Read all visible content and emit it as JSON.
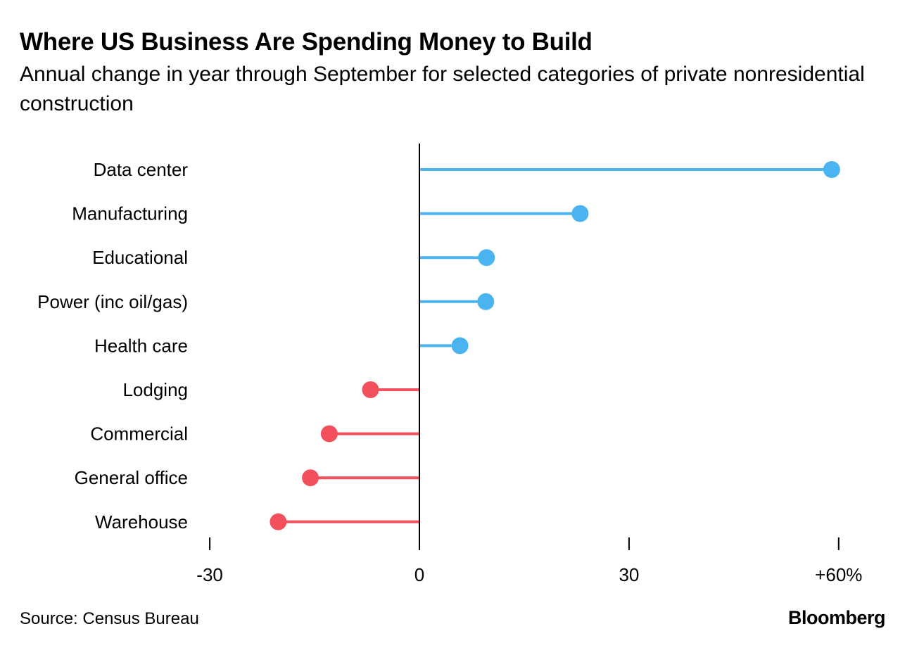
{
  "title": "Where US Business Are Spending Money to Build",
  "subtitle": "Annual change in year through September for selected categories of private nonresidential construction",
  "source": "Source: Census Bureau",
  "brand": "Bloomberg",
  "colors": {
    "positive": "#4ab4f0",
    "negative": "#f2505c",
    "axis": "#000000"
  },
  "chart_data": {
    "type": "lollipop",
    "title": "Where US Business Are Spending Money to Build",
    "subtitle": "Annual change in year through September for selected categories of private nonresidential construction",
    "xlabel": "",
    "ylabel": "",
    "unit": "%",
    "xlim": [
      -30,
      64
    ],
    "ticks": [
      {
        "value": -30,
        "label": "-30"
      },
      {
        "value": 0,
        "label": "0"
      },
      {
        "value": 30,
        "label": "30"
      },
      {
        "value": 60,
        "label": "+60%"
      }
    ],
    "categories": [
      "Data center",
      "Manufacturing",
      "Educational",
      "Power (inc oil/gas)",
      "Health care",
      "Lodging",
      "Commercial",
      "General office",
      "Warehouse"
    ],
    "values": [
      59,
      23,
      9.6,
      9.5,
      5.8,
      -7,
      -12.9,
      -15.6,
      -20.2
    ],
    "grid": false,
    "legend": "none"
  }
}
